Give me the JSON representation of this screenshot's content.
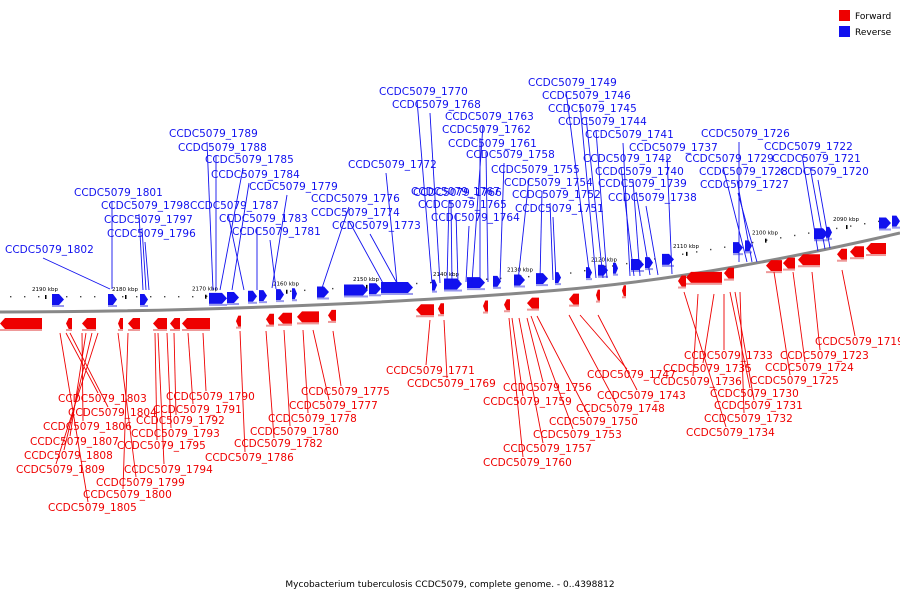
{
  "legend": {
    "forward_label": "Forward",
    "reverse_label": "Reverse",
    "forward_color": "#ee0000",
    "reverse_color": "#1111ee"
  },
  "caption": "Mycobacterium tuberculosis CCDC5079, complete genome. - 0..4398812",
  "ticks": [
    "2090 kbp",
    "2100 kbp",
    "2110 kbp",
    "2120 kbp",
    "2130 kbp",
    "2140 kbp",
    "2150 kbp",
    "2160 kbp",
    "2170 kbp",
    "2180 kbp",
    "2190 kbp"
  ],
  "reverse_labels": [
    "CCDC5079_1802",
    "CCDC5079_1801",
    "CCDC5079_1798",
    "CCDC5079_1797",
    "CCDC5079_1796",
    "CCDC5079_1789",
    "CCDC5079_1788",
    "CCDC5079_1785",
    "CCDC5079_1784",
    "CCDC5079_1779",
    "CCDC5079_1787",
    "CCDC5079_1783",
    "CCDC5079_1781",
    "CCDC5079_1776",
    "CCDC5079_1774",
    "CCDC5079_1773",
    "CCDC5079_1772",
    "CCDC5079_1770",
    "CCDC5079_1768",
    "CCDC5079_1767",
    "CCDC5079_1766",
    "CCDC5079_1765",
    "CCDC5079_1764",
    "CCDC5079_1763",
    "CCDC5079_1762",
    "CCDC5079_1761",
    "CCDC5079_1758",
    "CCDC5079_1755",
    "CCDC5079_1754",
    "CCDC5079_1752",
    "CCDC5079_1751",
    "CCDC5079_1749",
    "CCDC5079_1746",
    "CCDC5079_1745",
    "CCDC5079_1744",
    "CCDC5079_1741",
    "CCDC5079_1742",
    "CCDC5079_1740",
    "CCDC5079_1739",
    "CCDC5079_1738",
    "CCDC5079_1737",
    "CCDC5079_1726",
    "CCDC5079_1729",
    "CCDC5079_1728",
    "CCDC5079_1727",
    "CCDC5079_1722",
    "CCDC5079_1721",
    "CCDC5079_1720"
  ],
  "forward_labels": [
    "CCDC5079_1803",
    "CCDC5079_1804",
    "CCDC5079_1806",
    "CCDC5079_1807",
    "CCDC5079_1808",
    "CCDC5079_1809",
    "CCDC5079_1799",
    "CCDC5079_1800",
    "CCDC5079_1805",
    "CCDC5079_1790",
    "CCDC5079_1791",
    "CCDC5079_1792",
    "CCDC5079_1793",
    "CCDC5079_1795",
    "CCDC5079_1794",
    "CCDC5079_1775",
    "CCDC5079_1777",
    "CCDC5079_1778",
    "CCDC5079_1780",
    "CCDC5079_1782",
    "CCDC5079_1786",
    "CCDC5079_1771",
    "CCDC5079_1769",
    "CCDC5079_1756",
    "CCDC5079_1759",
    "CCDC5079_1757",
    "CCDC5079_1760",
    "CCDC5079_1747",
    "CCDC5079_1743",
    "CCDC5079_1748",
    "CCDC5079_1750",
    "CCDC5079_1753",
    "CCDC5079_1733",
    "CCDC5079_1735",
    "CCDC5079_1736",
    "CCDC5079_1730",
    "CCDC5079_1731",
    "CCDC5079_1732",
    "CCDC5079_1734",
    "CCDC5079_1719",
    "CCDC5079_1723",
    "CCDC5079_1724",
    "CCDC5079_1725"
  ]
}
